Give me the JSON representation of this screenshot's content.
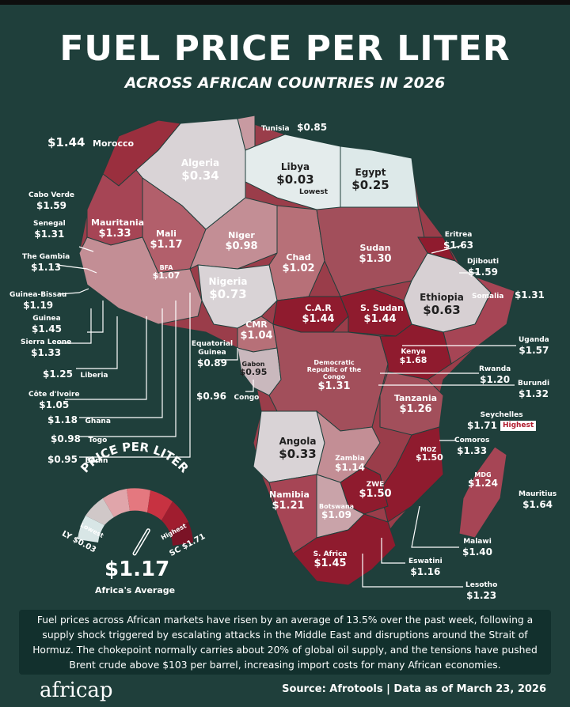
{
  "header": {
    "title": "FUEL PRICE PER LITER",
    "subtitle": "ACROSS AFRICAN COUNTRIES IN 2026"
  },
  "scale": {
    "low_color": "#d8e6e6",
    "high_color": "#8c1b2c",
    "mid_colors": [
      "#b67f86",
      "#a5515e",
      "#8f2f40"
    ]
  },
  "countries": {
    "morocco": {
      "name": "Morocco",
      "price": "$1.44"
    },
    "algeria": {
      "name": "Algeria",
      "price": "$0.34"
    },
    "tunisia": {
      "name": "Tunisia",
      "price": "$0.85"
    },
    "libya": {
      "name": "Libya",
      "price": "$0.03",
      "tag": "Lowest"
    },
    "egypt": {
      "name": "Egypt",
      "price": "$0.25"
    },
    "cabo_verde": {
      "name": "Cabo Verde",
      "price": "$1.59"
    },
    "senegal": {
      "name": "Senegal",
      "price": "$1.31"
    },
    "mauritania": {
      "name": "Mauritania",
      "price": "$1.33"
    },
    "mali": {
      "name": "Mali",
      "price": "$1.17"
    },
    "niger": {
      "name": "Niger",
      "price": "$0.98"
    },
    "chad": {
      "name": "Chad",
      "price": "$1.02"
    },
    "sudan": {
      "name": "Sudan",
      "price": "$1.30"
    },
    "eritrea": {
      "name": "Eritrea",
      "price": "$1.63"
    },
    "djibouti": {
      "name": "Djibouti",
      "price": "$1.59"
    },
    "gambia": {
      "name": "The Gambia",
      "price": "$1.13"
    },
    "bfa": {
      "name": "BFA",
      "price": "$1.07"
    },
    "nigeria": {
      "name": "Nigeria",
      "price": "$0.73"
    },
    "ethiopia": {
      "name": "Ethiopia",
      "price": "$0.63"
    },
    "somalia": {
      "name": "Somalia",
      "price": "$1.31"
    },
    "guinea_bissau": {
      "name": "Guinea-Bissau",
      "price": "$1.19"
    },
    "guinea": {
      "name": "Guinea",
      "price": "$1.45"
    },
    "sierra_leone": {
      "name": "Sierra Leone",
      "price": "$1.33"
    },
    "car": {
      "name": "C.A.R",
      "price": "$1.44"
    },
    "south_sudan": {
      "name": "S. Sudan",
      "price": "$1.44"
    },
    "cmr": {
      "name": "CMR",
      "price": "$1.04"
    },
    "uganda": {
      "name": "Uganda",
      "price": "$1.57"
    },
    "equatorial_guinea": {
      "name": "Equatorial Guinea",
      "price": "$0.89"
    },
    "gabon": {
      "name": "Gabon",
      "price": "$0.95"
    },
    "kenya": {
      "name": "Kenya",
      "price": "$1.68"
    },
    "liberia": {
      "name": "Liberia",
      "price": "$1.25"
    },
    "drc": {
      "name": "Democratic Republic of the Congo",
      "price": "$1.31"
    },
    "rwanda": {
      "name": "Rwanda",
      "price": "$1.20"
    },
    "burundi": {
      "name": "Burundi",
      "price": "$1.32"
    },
    "cote_divoire": {
      "name": "Côte d'Ivoire",
      "price": "$1.05"
    },
    "congo": {
      "name": "Congo",
      "price": "$0.96"
    },
    "tanzania": {
      "name": "Tanzania",
      "price": "$1.26"
    },
    "ghana": {
      "name": "Ghana",
      "price": "$1.18"
    },
    "seychelles": {
      "name": "Seychelles",
      "price": "$1.71",
      "tag": "Highest"
    },
    "togo": {
      "name": "Togo",
      "price": "$0.98"
    },
    "benin": {
      "name": "Benin",
      "price": "$0.95"
    },
    "angola": {
      "name": "Angola",
      "price": "$0.33"
    },
    "comoros": {
      "name": "Comoros",
      "price": "$1.33"
    },
    "zambia": {
      "name": "Zambia",
      "price": "$1.14"
    },
    "moz": {
      "name": "MOZ",
      "price": "$1.50"
    },
    "mdg": {
      "name": "MDG",
      "price": "$1.24"
    },
    "zwe": {
      "name": "ZWE",
      "price": "$1.50"
    },
    "namibia": {
      "name": "Namibia",
      "price": "$1.21"
    },
    "botswana": {
      "name": "Botswana",
      "price": "$1.09"
    },
    "mauritius": {
      "name": "Mauritius",
      "price": "$1.64"
    },
    "malawi": {
      "name": "Malawi",
      "price": "$1.40"
    },
    "south_africa": {
      "name": "S. Africa",
      "price": "$1.45"
    },
    "eswatini": {
      "name": "Eswatini",
      "price": "$1.16"
    },
    "lesotho": {
      "name": "Lesotho",
      "price": "$1.23"
    }
  },
  "legend": {
    "title": "PRICE PER LITER",
    "lowest_label": "Lowest",
    "lowest_value": "LY $0.03",
    "highest_label": "Highest",
    "highest_value": "SC $1.71",
    "average_value": "$1.17",
    "average_label": "Africa's Average",
    "needle_fraction": 0.67
  },
  "description": "Fuel prices across African markets have risen by an average of 13.5% over the past week, following a supply shock triggered by escalating attacks in the Middle East and disruptions around the Strait of Hormuz. The chokepoint normally carries about 20% of global oil supply, and the tensions have pushed Brent crude above $103 per barrel, increasing import costs for many African economies.",
  "footer": {
    "logo": "africap",
    "source": "Source: Afrotools | Data as of March 23, 2026"
  }
}
